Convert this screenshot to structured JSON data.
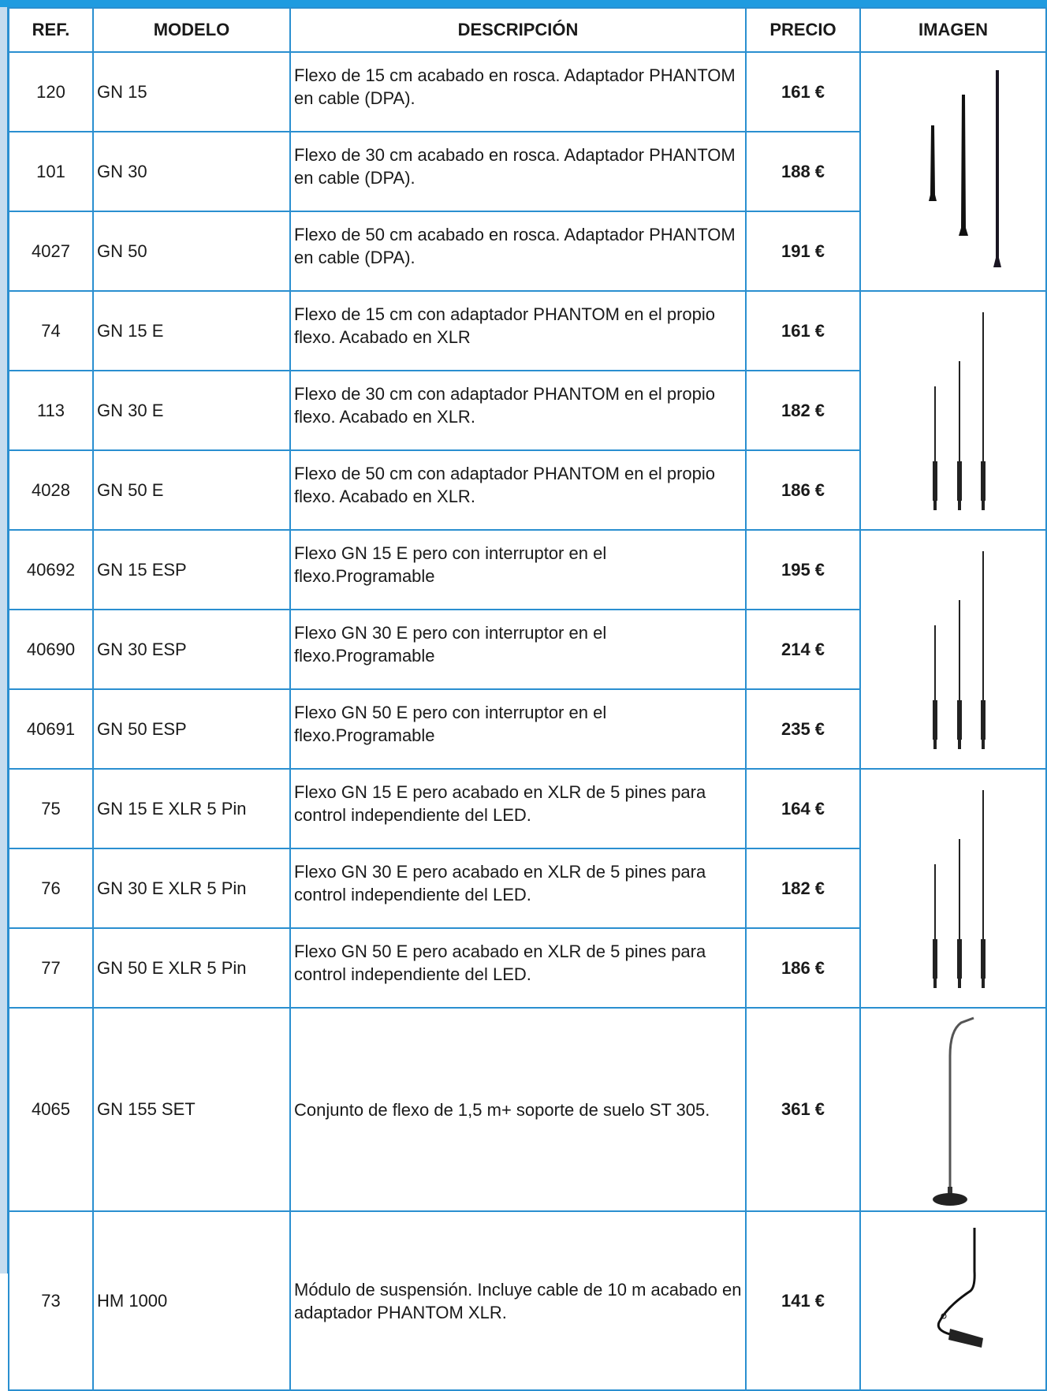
{
  "table": {
    "columns": [
      "REF.",
      "MODELO",
      "DESCRIPCIÓN",
      "PRECIO",
      "IMAGEN"
    ],
    "rows": [
      [
        "120",
        "GN 15",
        "Flexo de 15 cm acabado en rosca. Adaptador PHANTOM en cable (DPA).",
        "161 €"
      ],
      [
        "101",
        "GN 30",
        "Flexo de 30 cm acabado en rosca. Adaptador PHANTOM en cable (DPA).",
        "188 €"
      ],
      [
        "4027",
        "GN 50",
        "Flexo de 50 cm acabado en rosca. Adaptador PHANTOM en cable (DPA).",
        "191 €"
      ],
      [
        "74",
        "GN 15 E",
        "Flexo de 15 cm con adaptador PHANTOM en el propio flexo. Acabado en XLR",
        "161 €"
      ],
      [
        "113",
        "GN 30 E",
        "Flexo de 30 cm con adaptador PHANTOM en el propio flexo. Acabado en XLR.",
        "182 €"
      ],
      [
        "4028",
        "GN 50 E",
        "Flexo de 50 cm con adaptador PHANTOM en el propio flexo. Acabado en XLR.",
        "186 €"
      ],
      [
        "40692",
        "GN 15 ESP",
        "Flexo GN 15 E pero con interruptor en el flexo.Programable",
        "195 €"
      ],
      [
        "40690",
        "GN 30 ESP",
        "Flexo GN 30 E pero con interruptor en el flexo.Programable",
        "214 €"
      ],
      [
        "40691",
        "GN 50 ESP",
        "Flexo GN 50 E pero con interruptor en el flexo.Programable",
        "235 €"
      ],
      [
        "75",
        "GN 15 E XLR 5 Pin",
        "Flexo GN 15 E pero acabado en XLR de 5 pines para control independiente del LED.",
        "164 €"
      ],
      [
        "76",
        "GN 30 E XLR 5 Pin",
        "Flexo GN 30 E pero acabado en XLR de 5 pines para control independiente del LED.",
        "182 €"
      ],
      [
        "77",
        "GN 50 E XLR 5 Pin",
        "Flexo GN 50 E pero acabado en XLR de 5 pines para control independiente del LED.",
        "186 €"
      ],
      [
        "4065",
        "GN 155 SET",
        "Conjunto de flexo de 1,5 m+ soporte de suelo ST 305.",
        "361 €"
      ],
      [
        "73",
        "HM 1000",
        "Módulo de suspensión. Incluye cable de 10 m acabado en adaptador PHANTOM XLR.",
        "141 €"
      ]
    ]
  }
}
